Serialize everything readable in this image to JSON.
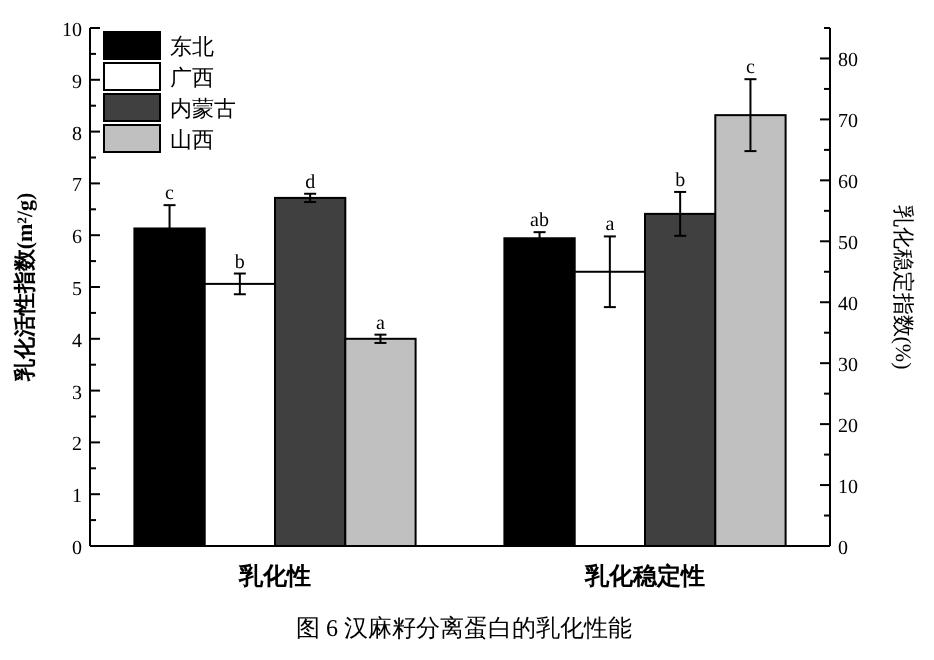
{
  "chart_data": {
    "type": "bar",
    "title": "图 6 汉麻籽分离蛋白的乳化性能",
    "ylabel": "乳化活性指数(m²/g)",
    "y2label": "乳化稳定指数(%)",
    "categories": [
      "乳化性",
      "乳化稳定性"
    ],
    "series": [
      {
        "name": "东北",
        "color": "#000000",
        "values": [
          6.13,
          null
        ],
        "errors": [
          0.45,
          null
        ],
        "value_labels": [
          "c",
          null
        ]
      },
      {
        "name": "广西",
        "color": "#ffffff",
        "values": [
          5.06,
          null
        ],
        "errors": [
          0.2,
          null
        ],
        "value_labels": [
          "b",
          null
        ]
      },
      {
        "name": "内蒙古",
        "color": "#404040",
        "values": [
          6.72,
          null
        ],
        "errors": [
          0.08,
          null
        ],
        "value_labels": [
          "d",
          null
        ]
      },
      {
        "name": "山西",
        "color": "#c0c0c0",
        "values": [
          4.0,
          null
        ],
        "errors": [
          0.08,
          null
        ],
        "value_labels": [
          "a",
          null
        ]
      },
      {
        "color": "#000000",
        "axis": "y2",
        "values": [
          null,
          50.5
        ],
        "errors": [
          null,
          1
        ],
        "value_labels": [
          null,
          "ab"
        ]
      },
      {
        "color": "#ffffff",
        "axis": "y2",
        "values": [
          null,
          45
        ],
        "errors": [
          null,
          5.8
        ],
        "value_labels": [
          null,
          "a"
        ]
      },
      {
        "color": "#404040",
        "axis": "y2",
        "values": [
          null,
          54.5
        ],
        "errors": [
          null,
          3.6
        ],
        "value_labels": [
          null,
          "b"
        ]
      },
      {
        "color": "#c0c0c0",
        "axis": "y2",
        "values": [
          null,
          70.7
        ],
        "errors": [
          null,
          5.9
        ],
        "value_labels": [
          null,
          "c"
        ]
      }
    ],
    "ylim": [
      0,
      10
    ],
    "yticks": [
      0,
      {
        "value": 0.5,
        "label": null
      },
      1,
      {
        "value": 1.5,
        "label": null
      },
      2,
      {
        "value": 2.5,
        "label": null
      },
      3,
      {
        "value": 3.5,
        "label": null
      },
      4,
      {
        "value": 4.5,
        "label": null
      },
      5,
      {
        "value": 5.5,
        "label": null
      },
      6,
      {
        "value": 6.5,
        "label": null
      },
      7,
      {
        "value": 7.5,
        "label": null
      },
      8,
      {
        "value": 8.5,
        "label": null
      },
      9,
      {
        "value": 9.5,
        "label": null
      },
      10
    ],
    "y2lim": [
      0,
      85
    ],
    "y2ticks": [
      0,
      {
        "value": 5,
        "label": null
      },
      10,
      {
        "value": 15,
        "label": null
      },
      20,
      {
        "value": 25,
        "label": null
      },
      30,
      {
        "value": 35,
        "label": null
      },
      40,
      {
        "value": 45,
        "label": null
      },
      50,
      {
        "value": 55,
        "label": null
      },
      60,
      {
        "value": 65,
        "label": null
      },
      70,
      {
        "value": 75,
        "label": null
      },
      80,
      {
        "value": 85,
        "label": null
      }
    ],
    "legend": "top left",
    "grid": false
  }
}
